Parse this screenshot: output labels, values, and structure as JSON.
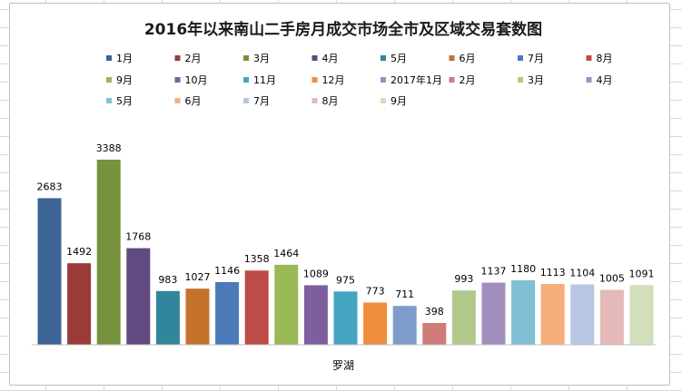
{
  "chart_data": {
    "type": "bar",
    "title": "2016年以来南山二手房月成交市场全市及区域交易套数图",
    "categories": [
      "罗湖"
    ],
    "series": [
      {
        "name": "1月",
        "values": [
          2683
        ],
        "color": "#3c6494"
      },
      {
        "name": "2月",
        "values": [
          1492
        ],
        "color": "#993c39"
      },
      {
        "name": "3月",
        "values": [
          3388
        ],
        "color": "#76923c"
      },
      {
        "name": "4月",
        "values": [
          1768
        ],
        "color": "#614a80"
      },
      {
        "name": "5月",
        "values": [
          983
        ],
        "color": "#31869b"
      },
      {
        "name": "6月",
        "values": [
          1027
        ],
        "color": "#c5722d"
      },
      {
        "name": "7月",
        "values": [
          1146
        ],
        "color": "#4a7ab8"
      },
      {
        "name": "8月",
        "values": [
          1358
        ],
        "color": "#be4b48"
      },
      {
        "name": "9月",
        "values": [
          1464
        ],
        "color": "#98b954"
      },
      {
        "name": "10月",
        "values": [
          1089
        ],
        "color": "#7d5f9e"
      },
      {
        "name": "11月",
        "values": [
          975
        ],
        "color": "#46a5c0"
      },
      {
        "name": "12月",
        "values": [
          773
        ],
        "color": "#ee8e3d"
      },
      {
        "name": "2017年1月",
        "values": [
          711
        ],
        "color": "#7e9ccb"
      },
      {
        "name": "2月",
        "values": [
          398
        ],
        "color": "#cf7b79"
      },
      {
        "name": "3月",
        "values": [
          993
        ],
        "color": "#b1c88a"
      },
      {
        "name": "4月",
        "values": [
          1137
        ],
        "color": "#a08fbd"
      },
      {
        "name": "5月",
        "values": [
          1180
        ],
        "color": "#80c0d4"
      },
      {
        "name": "6月",
        "values": [
          1113
        ],
        "color": "#f6ad7a"
      },
      {
        "name": "7月",
        "values": [
          1104
        ],
        "color": "#b7c7e2"
      },
      {
        "name": "8月",
        "values": [
          1005
        ],
        "color": "#e4b9b8"
      },
      {
        "name": "9月",
        "values": [
          1091
        ],
        "color": "#d1dfba"
      }
    ],
    "ylim": [
      0,
      3800
    ],
    "grid": false,
    "legend_position": "top",
    "data_labels": true
  }
}
